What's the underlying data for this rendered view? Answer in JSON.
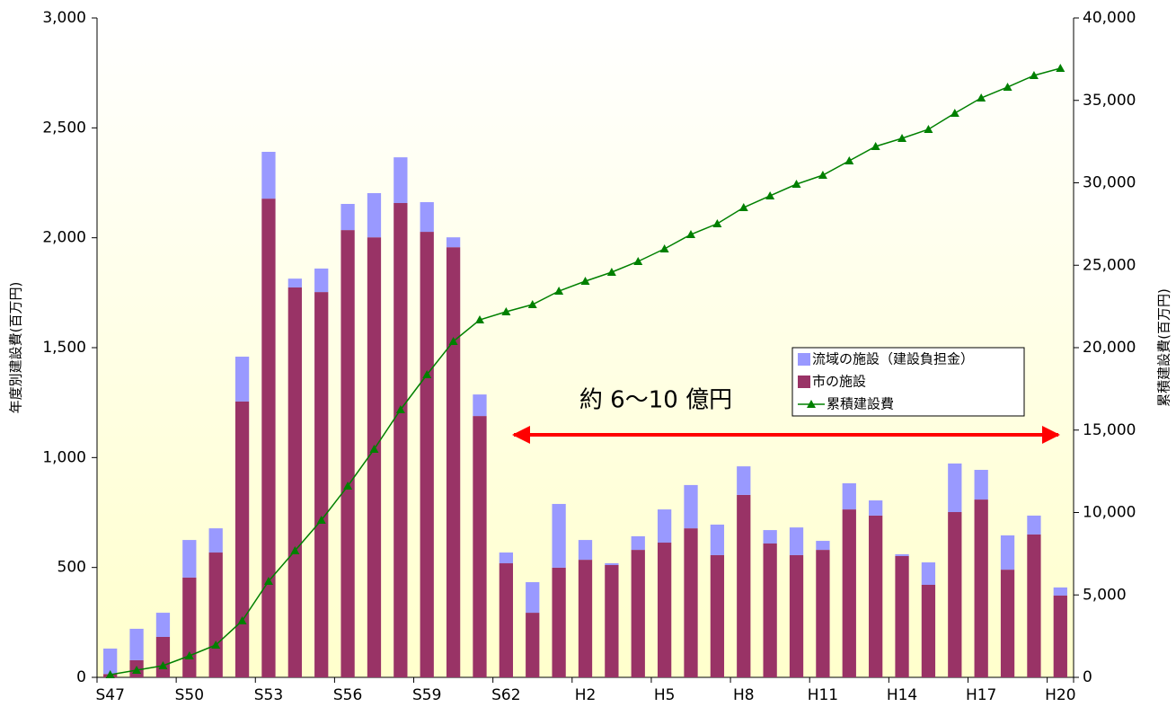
{
  "chart_data": {
    "type": "bar",
    "stacked": true,
    "categories": [
      "S47",
      null,
      null,
      "S50",
      null,
      null,
      "S53",
      null,
      null,
      "S56",
      null,
      null,
      "S59",
      null,
      null,
      "S62",
      null,
      null,
      "H2",
      null,
      null,
      "H5",
      null,
      null,
      "H8",
      null,
      null,
      "H11",
      null,
      null,
      "H14",
      null,
      null,
      "H17",
      null,
      null,
      "H20"
    ],
    "series": [
      {
        "name": "流域の施設（建設負担金）",
        "color": "#9999ff",
        "values": [
          116,
          143,
          110,
          171,
          110,
          204,
          213,
          40,
          107,
          119,
          201,
          208,
          135,
          45,
          98,
          49,
          139,
          290,
          90,
          8,
          62,
          151,
          197,
          139,
          130,
          61,
          126,
          41,
          119,
          69,
          8,
          102,
          221,
          135,
          156,
          86,
          37
        ]
      },
      {
        "name": "市の施設",
        "color": "#993366",
        "values": [
          15,
          78,
          184,
          454,
          568,
          1255,
          2178,
          1774,
          1753,
          2035,
          2002,
          2158,
          2027,
          1957,
          1189,
          519,
          294,
          499,
          535,
          511,
          580,
          613,
          678,
          556,
          830,
          609,
          556,
          580,
          764,
          736,
          552,
          421,
          752,
          809,
          490,
          650,
          372
        ]
      },
      {
        "name": "累積建設費",
        "color": "#008000",
        "type": "line",
        "axis": "y2",
        "marker": "triangle",
        "values": [
          163,
          436,
          708,
          1308,
          1962,
          3433,
          5831,
          7684,
          9537,
          11608,
          13842,
          16240,
          18365,
          20381,
          21689,
          22180,
          22616,
          23433,
          24033,
          24578,
          25232,
          25995,
          26866,
          27520,
          28501,
          29210,
          29918,
          30463,
          31335,
          32207,
          32698,
          33243,
          34223,
          35150,
          35804,
          36512,
          36948
        ]
      }
    ],
    "ylabel": "年度別建設費(百万円)",
    "y2label": "累積建設費(百万円)",
    "ylim": [
      0,
      3000
    ],
    "yticks": [
      0,
      500,
      {
        "value": 1000,
        "label": "1,000"
      },
      {
        "value": 1500,
        "label": "1,500"
      },
      {
        "value": 2000,
        "label": "2,000"
      },
      {
        "value": 2500,
        "label": "2,500"
      },
      {
        "value": 3000,
        "label": "3,000"
      }
    ],
    "y2lim": [
      0,
      40000
    ],
    "y2ticks": [
      0,
      {
        "value": 5000,
        "label": "5,000"
      },
      {
        "value": 10000,
        "label": "10,000"
      },
      {
        "value": 15000,
        "label": "15,000"
      },
      {
        "value": 20000,
        "label": "20,000"
      },
      {
        "value": 25000,
        "label": "25,000"
      },
      {
        "value": 30000,
        "label": "30,000"
      },
      {
        "value": 35000,
        "label": "35,000"
      },
      {
        "value": 40000,
        "label": "40,000"
      }
    ],
    "annotation": "約 6～10 億円",
    "grid": false
  }
}
